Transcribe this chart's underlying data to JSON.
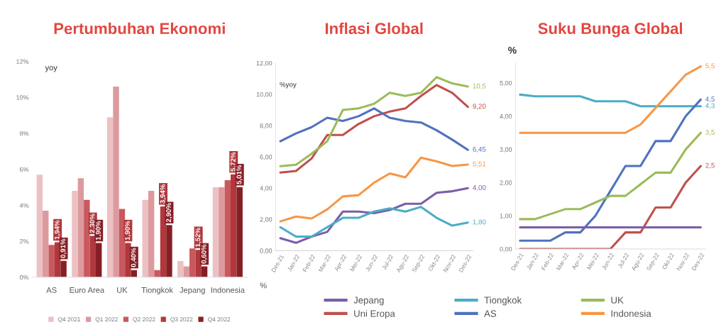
{
  "chart_data": [
    {
      "type": "bar",
      "title": "Pertumbuhan Ekonomi",
      "ylabel": "yoy",
      "categories": [
        "AS",
        "Euro Area",
        "UK",
        "Tiongkok",
        "Jepang",
        "Indonesia"
      ],
      "series": [
        {
          "name": "Q4 2021",
          "color": "#ebc1c4",
          "values": [
            5.7,
            4.8,
            8.9,
            4.3,
            0.9,
            5.0
          ]
        },
        {
          "name": "Q1 2022",
          "color": "#dc9a9e",
          "values": [
            3.7,
            5.5,
            10.6,
            4.8,
            0.6,
            5.0
          ]
        },
        {
          "name": "Q2 2022",
          "color": "#c9595d",
          "values": [
            1.8,
            4.3,
            3.8,
            0.4,
            1.6,
            5.4
          ]
        },
        {
          "name": "Q3 2022",
          "color": "#b0383d",
          "values": [
            1.94,
            2.3,
            1.9,
            3.94,
            1.52,
            5.72
          ],
          "value_labels": [
            "1,94%",
            "2,30%",
            "1,90%",
            "3,94%",
            "1,52%",
            "5,72%"
          ]
        },
        {
          "name": "Q4 2022",
          "color": "#861f25",
          "values": [
            0.91,
            1.9,
            0.4,
            2.9,
            0.6,
            5.01
          ],
          "value_labels": [
            "0,91%",
            "1,90%",
            "0,40%",
            "2,90%",
            "0,60%",
            "5,01%"
          ]
        }
      ],
      "ylim": [
        0,
        12
      ],
      "yticks": [
        {
          "value": 0,
          "label": "0%"
        },
        {
          "value": 2,
          "label": "2%"
        },
        {
          "value": 4,
          "label": "4%"
        },
        {
          "value": 6,
          "label": "6%"
        },
        {
          "value": 8,
          "label": "8%"
        },
        {
          "value": 10,
          "label": "10%"
        },
        {
          "value": 12,
          "label": "12%"
        }
      ],
      "legend": "bottom",
      "grid": false
    },
    {
      "type": "line",
      "title": "Inflasi Global",
      "ylabel": "%yoy",
      "annotations": [
        "%"
      ],
      "categories": [
        "Des-21",
        "Jan-22",
        "Feb-22",
        "Mar-22",
        "Apr-22",
        "Mei-22",
        "Jun-22",
        "Jul-22",
        "Agu-22",
        "Sep-22",
        "Okt-22",
        "Nov-22",
        "Des-22"
      ],
      "series": [
        {
          "name": "Jepang",
          "color": "#7b5ea7",
          "values": [
            0.8,
            0.5,
            0.9,
            1.2,
            2.5,
            2.5,
            2.4,
            2.6,
            3.0,
            3.0,
            3.7,
            3.8,
            4.0
          ],
          "value_labels": [
            null,
            null,
            null,
            null,
            null,
            null,
            null,
            null,
            null,
            null,
            null,
            null,
            "4,00"
          ]
        },
        {
          "name": "Uni Eropa",
          "color": "#c0504d",
          "values": [
            5.0,
            5.1,
            5.9,
            7.4,
            7.4,
            8.1,
            8.6,
            8.9,
            9.1,
            9.9,
            10.6,
            10.1,
            9.2
          ],
          "value_labels": [
            null,
            null,
            null,
            null,
            null,
            null,
            null,
            null,
            null,
            null,
            null,
            null,
            "9,20"
          ]
        },
        {
          "name": "Tiongkok",
          "color": "#4bacc6",
          "values": [
            1.5,
            0.9,
            0.9,
            1.5,
            2.1,
            2.1,
            2.5,
            2.7,
            2.5,
            2.8,
            2.1,
            1.6,
            1.8
          ],
          "value_labels": [
            null,
            null,
            null,
            null,
            null,
            null,
            null,
            null,
            null,
            null,
            null,
            null,
            "1,80"
          ]
        },
        {
          "name": "AS",
          "color": "#4f72be",
          "values": [
            7.0,
            7.5,
            7.9,
            8.5,
            8.3,
            8.6,
            9.1,
            8.5,
            8.3,
            8.2,
            7.7,
            7.1,
            6.45
          ],
          "value_labels": [
            null,
            null,
            null,
            null,
            null,
            null,
            null,
            null,
            null,
            null,
            null,
            null,
            "6,45"
          ]
        },
        {
          "name": "UK",
          "color": "#9bbb59",
          "values": [
            5.4,
            5.5,
            6.2,
            7.0,
            9.0,
            9.1,
            9.4,
            10.1,
            9.9,
            10.1,
            11.1,
            10.7,
            10.5
          ],
          "value_labels": [
            null,
            null,
            null,
            null,
            null,
            null,
            null,
            null,
            null,
            null,
            null,
            null,
            "10,5"
          ]
        },
        {
          "name": "Indonesia",
          "color": "#f79646",
          "values": [
            1.87,
            2.18,
            2.06,
            2.64,
            3.47,
            3.55,
            4.35,
            4.94,
            4.69,
            5.95,
            5.71,
            5.42,
            5.51
          ],
          "value_labels": [
            null,
            null,
            null,
            null,
            null,
            null,
            null,
            null,
            null,
            null,
            null,
            null,
            "5,51"
          ]
        }
      ],
      "ylim": [
        0,
        12
      ],
      "yticks": [
        {
          "value": 0,
          "label": "0,00"
        },
        {
          "value": 2,
          "label": "2,00"
        },
        {
          "value": 4,
          "label": "4,00"
        },
        {
          "value": 6,
          "label": "6,00"
        },
        {
          "value": 8,
          "label": "8,00"
        },
        {
          "value": 10,
          "label": "10,00"
        },
        {
          "value": 12,
          "label": "12,00"
        }
      ],
      "legend": "bottom",
      "grid": false,
      "marker": "none",
      "line_style": "solid"
    },
    {
      "type": "line",
      "title": "Suku Bunga Global",
      "ylabel": "%",
      "categories": [
        "Des-21",
        "Jan-22",
        "Feb-22",
        "Mar-22",
        "Apr-22",
        "Mei-22",
        "Jun-22",
        "Jul-22",
        "Agu-22",
        "Sep-22",
        "Okt-22",
        "Nov-22",
        "Des-22"
      ],
      "series": [
        {
          "color": "#4bacc6",
          "values": [
            4.65,
            4.6,
            4.6,
            4.6,
            4.6,
            4.45,
            4.45,
            4.45,
            4.3,
            4.3,
            4.3,
            4.3,
            4.3
          ],
          "value_labels": [
            null,
            null,
            null,
            null,
            null,
            null,
            null,
            null,
            null,
            null,
            null,
            null,
            "4,3"
          ]
        },
        {
          "color": "#f79646",
          "values": [
            3.5,
            3.5,
            3.5,
            3.5,
            3.5,
            3.5,
            3.5,
            3.5,
            3.75,
            4.25,
            4.75,
            5.25,
            5.5
          ],
          "value_labels": [
            null,
            null,
            null,
            null,
            null,
            null,
            null,
            null,
            null,
            null,
            null,
            null,
            "5,5"
          ]
        },
        {
          "color": "#4f72be",
          "values": [
            0.25,
            0.25,
            0.25,
            0.5,
            0.5,
            1.0,
            1.75,
            2.5,
            2.5,
            3.25,
            3.25,
            4.0,
            4.5
          ],
          "value_labels": [
            null,
            null,
            null,
            null,
            null,
            null,
            null,
            null,
            null,
            null,
            null,
            null,
            "4,5"
          ]
        },
        {
          "color": "#9bbb59",
          "values": [
            0.9,
            0.9,
            1.05,
            1.2,
            1.2,
            1.4,
            1.6,
            1.6,
            1.95,
            2.3,
            2.3,
            3.0,
            3.5
          ],
          "value_labels": [
            null,
            null,
            null,
            null,
            null,
            null,
            null,
            null,
            null,
            null,
            null,
            null,
            "3,5"
          ]
        },
        {
          "color": "#c0504d",
          "values": [
            0,
            0,
            0,
            0,
            0,
            0,
            0,
            0.5,
            0.5,
            1.25,
            1.25,
            2.0,
            2.5
          ],
          "value_labels": [
            null,
            null,
            null,
            null,
            null,
            null,
            null,
            null,
            null,
            null,
            null,
            null,
            "2,5"
          ]
        },
        {
          "color": "#7b5ea7",
          "values": [
            0.65,
            0.65,
            0.65,
            0.65,
            0.65,
            0.65,
            0.65,
            0.65,
            0.65,
            0.65,
            0.65,
            0.65,
            0.65
          ]
        }
      ],
      "ylim": [
        0,
        5.6
      ],
      "yticks": [
        {
          "value": 0,
          "label": "0,00"
        },
        {
          "value": 1,
          "label": "1,00"
        },
        {
          "value": 2,
          "label": "2,00"
        },
        {
          "value": 3,
          "label": "3,00"
        },
        {
          "value": 4,
          "label": "4,00"
        },
        {
          "value": 5,
          "label": "5,00"
        }
      ],
      "grid": false,
      "marker": "none",
      "line_style": "solid"
    }
  ]
}
